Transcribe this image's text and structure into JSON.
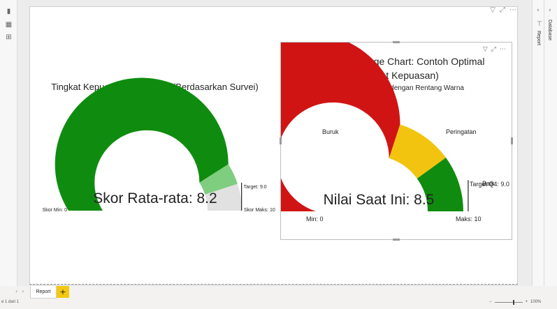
{
  "top_icons": [
    "filter-icon",
    "focus-mode-icon",
    "more-options-icon"
  ],
  "right_pane": {
    "panels": [
      {
        "name": "Database"
      },
      {
        "name": "Report"
      }
    ]
  },
  "visual_a": {
    "title": "Tingkat Kepuasan Pelanggan (Berdasarkan Survei)",
    "gauge": {
      "min": 0,
      "max": 10,
      "value": 8.2,
      "target": 9.0,
      "value_label": "Skor Rata-rata: 8.2",
      "min_label": "Skor Min: 0",
      "max_label": "Skor Maks: 10",
      "target_label": "Target: 9.0",
      "colors": {
        "value": "#0f8c0f",
        "value_to_target": "#7fcd7f",
        "remaining": "#e1e1e1",
        "target_line": "#222222"
      }
    }
  },
  "visual_b": {
    "title_line1": "Efektivitas Gauge Chart: Contoh Optimal",
    "title_line2": "(Tingkat Kepuasan)",
    "subtitle": "Konteks: Target Q4 dengan Rentang Warna",
    "gauge": {
      "min": 0,
      "max": 10,
      "value": 8.5,
      "target": 9.0,
      "value_label": "Nilai Saat Ini: 8.5",
      "min_label": "Min: 0",
      "max_label": "Maks: 10",
      "target_label": "Target Q4: 9.0",
      "bands": [
        {
          "label": "Buruk",
          "from": 0,
          "to": 6,
          "color": "#d01414"
        },
        {
          "label": "Peringatan",
          "from": 6,
          "to": 8,
          "color": "#f2c40f"
        },
        {
          "label": "Baik",
          "from": 8,
          "to": 10,
          "color": "#0f8c0f"
        }
      ],
      "target_line_color": "#222222"
    }
  },
  "bottom": {
    "page_tab": "Report",
    "add_tab": "+",
    "page_info": "e 1 dari 1",
    "zoom": "100%"
  }
}
